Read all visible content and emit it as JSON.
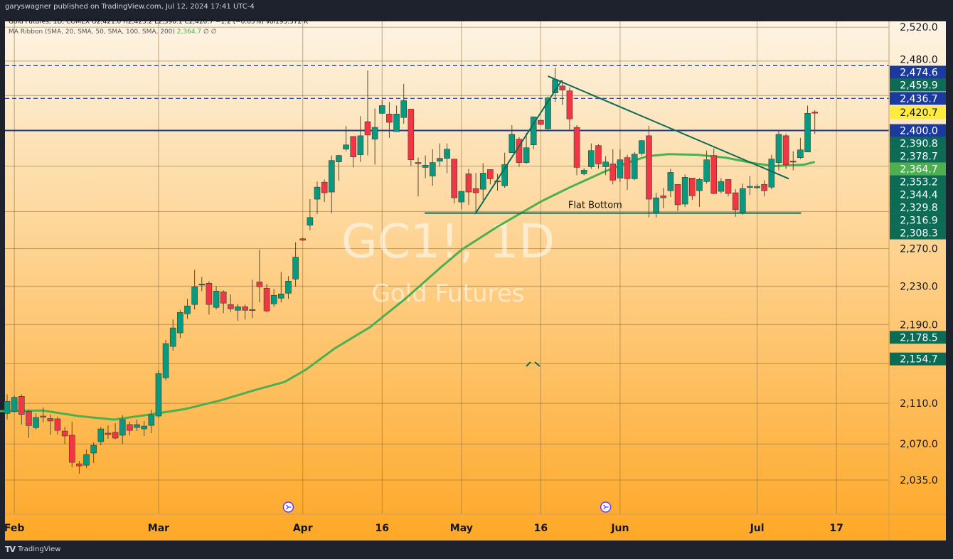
{
  "publisher_line": "garyswagner published on TradingView.com, Jul 12, 2024 17:41 UTC-4",
  "footer": {
    "brand": "TradingView"
  },
  "legend": {
    "symbol_line": "Gold Futures, 1D, COMEX  O2,421.0  H2,423.2  L2,396.1  C2,420.7  −1.2 (−0.05%)  Vol195.572 K",
    "ma_label": "MA Ribbon (SMA, 20, SMA, 50, SMA, 100, SMA, 200)",
    "ma_value": "2,364.7",
    "ma_extra": "∅  ∅"
  },
  "watermark": {
    "symbol": "GC1!, 1D",
    "name": "Gold Futures"
  },
  "colors": {
    "up": "#089981",
    "down": "#f23645",
    "ma": "#4caf50",
    "level": "#1a3a9c",
    "trend": "#0b6b55",
    "bg_top": "#fdf4e4",
    "bg_bottom": "#fea826"
  },
  "chart_data": {
    "type": "candlestick",
    "scale": "log",
    "ylim": [
      2020,
      2540
    ],
    "y_ticks": [
      "2,520.0",
      "2,270.0",
      "2,230.0",
      "2,190.0",
      "2,110.0",
      "2,070.0",
      "2,035.0"
    ],
    "y_tick_values": [
      2520,
      2270,
      2230,
      2190,
      2110,
      2070,
      2035
    ],
    "grid_values": [
      2520,
      2480,
      2440,
      2400,
      2360,
      2310,
      2270,
      2230,
      2190,
      2150,
      2110,
      2070,
      2035
    ],
    "x_ticks": [
      {
        "label": "Feb",
        "index": 1
      },
      {
        "label": "Mar",
        "index": 21
      },
      {
        "label": "Apr",
        "index": 41
      },
      {
        "label": "16",
        "index": 52
      },
      {
        "label": "May",
        "index": 63
      },
      {
        "label": "16",
        "index": 74
      },
      {
        "label": "Jun",
        "index": 85
      },
      {
        "label": "Jul",
        "index": 104
      },
      {
        "label": "17",
        "index": 115
      }
    ],
    "ohlc": [
      [
        2100,
        2119,
        2094,
        2112
      ],
      [
        2102,
        2118,
        2101,
        2116
      ],
      [
        2117,
        2119,
        2089,
        2099
      ],
      [
        2102,
        2104,
        2076,
        2088
      ],
      [
        2086,
        2100,
        2084,
        2096
      ],
      [
        2097.4,
        2106,
        2091,
        2096.7
      ],
      [
        2095,
        2099,
        2079,
        2092.5
      ],
      [
        2094.6,
        2096.7,
        2079,
        2083.3
      ],
      [
        2082.6,
        2086.8,
        2070,
        2077.8
      ],
      [
        2078.5,
        2091.8,
        2047.3,
        2052.1
      ],
      [
        2050.7,
        2053.5,
        2041.1,
        2048.6
      ],
      [
        2049.3,
        2064.5,
        2046.6,
        2059.7
      ],
      [
        2061.1,
        2071.5,
        2051.4,
        2068.7
      ],
      [
        2072.2,
        2086.8,
        2068.7,
        2084.7
      ],
      [
        2080.6,
        2088.2,
        2075,
        2079.2
      ],
      [
        2081.3,
        2090.4,
        2074.3,
        2075.7
      ],
      [
        2078.5,
        2098.1,
        2070.1,
        2093.9
      ],
      [
        2089,
        2091.8,
        2078.5,
        2083.3
      ],
      [
        2086.1,
        2093.9,
        2082.6,
        2089
      ],
      [
        2084.7,
        2092.5,
        2077.8,
        2087.5
      ],
      [
        2088.2,
        2103.7,
        2080.6,
        2098.8
      ],
      [
        2097.4,
        2143.7,
        2095.3,
        2139.9
      ],
      [
        2135.7,
        2174.1,
        2132.9,
        2170.4
      ],
      [
        2167.5,
        2195.2,
        2163.1,
        2186.5
      ],
      [
        2181.4,
        2204.8,
        2176.2,
        2202.5
      ],
      [
        2201.1,
        2216.7,
        2195.9,
        2209.3
      ],
      [
        2210.8,
        2247.3,
        2205.6,
        2229.4
      ],
      [
        2231.6,
        2239.7,
        2224.9,
        2232.3
      ],
      [
        2233.1,
        2235.3,
        2200.4,
        2210.8
      ],
      [
        2207.8,
        2230.1,
        2205.6,
        2224.9
      ],
      [
        2224.1,
        2225.6,
        2201.8,
        2212.2
      ],
      [
        2210.8,
        2221.2,
        2203.3,
        2206.3
      ],
      [
        2204.8,
        2211.5,
        2193.8,
        2208.5
      ],
      [
        2208.5,
        2210.8,
        2195.2,
        2204.8
      ],
      [
        2205.6,
        2236.8,
        2196.7,
        2205.4
      ],
      [
        2234.5,
        2269.1,
        2213,
        2229.4
      ],
      [
        2227.8,
        2232.3,
        2202.6,
        2204.1
      ],
      [
        2211.5,
        2227.1,
        2208.5,
        2220.4
      ],
      [
        2217.4,
        2245,
        2213,
        2221.9
      ],
      [
        2222.6,
        2240.5,
        2216.7,
        2235.3
      ],
      [
        2237.5,
        2276.7,
        2229.4,
        2260.8
      ],
      [
        2280.5,
        2281.5,
        2278,
        2279
      ],
      [
        2295.1,
        2323.5,
        2289.7,
        2303.5
      ],
      [
        2323.5,
        2342.9,
        2307.3,
        2336.7
      ],
      [
        2342.2,
        2345.2,
        2320.4,
        2330.5
      ],
      [
        2331.3,
        2371.9,
        2308.1,
        2366.3
      ],
      [
        2364.7,
        2372.7,
        2343.7,
        2371.9
      ],
      [
        2379,
        2405.3,
        2376.6,
        2383.8
      ],
      [
        2393.3,
        2393.3,
        2358.6,
        2370.3
      ],
      [
        2372.7,
        2416.4,
        2364.7,
        2394.1
      ],
      [
        2410.1,
        2469,
        2371.9,
        2394.9
      ],
      [
        2390.2,
        2425.2,
        2361.7,
        2403.6
      ],
      [
        2419.6,
        2435,
        2418.8,
        2428.4
      ],
      [
        2418.8,
        2432.5,
        2391.7,
        2409.3
      ],
      [
        2398.8,
        2428.4,
        2398.8,
        2418.8
      ],
      [
        2414.8,
        2453.5,
        2407.7,
        2434.1
      ],
      [
        2424.4,
        2424.4,
        2360.1,
        2367.1
      ],
      [
        2364,
        2369.5,
        2326.6,
        2363.8
      ],
      [
        2358.6,
        2371.9,
        2346.8,
        2361
      ],
      [
        2349,
        2379,
        2338.3,
        2364
      ],
      [
        2365.5,
        2385.4,
        2359.3,
        2368.7
      ],
      [
        2368.7,
        2385.4,
        2352.2,
        2379
      ],
      [
        2367.9,
        2367.9,
        2318.8,
        2325
      ],
      [
        2320.4,
        2332.1,
        2312.7,
        2332.1
      ],
      [
        2351.5,
        2357,
        2317.3,
        2331.3
      ],
      [
        2335.2,
        2352.2,
        2307.3,
        2330.5
      ],
      [
        2334.4,
        2363.2,
        2322.7,
        2352.2
      ],
      [
        2356.2,
        2356.2,
        2339.8,
        2346
      ],
      [
        2343.7,
        2351.5,
        2332.8,
        2343.5
      ],
      [
        2338.3,
        2375,
        2336,
        2361.7
      ],
      [
        2375,
        2406.1,
        2375,
        2395.7
      ],
      [
        2390.2,
        2392.5,
        2359.3,
        2364
      ],
      [
        2364,
        2397.3,
        2362.5,
        2380.6
      ],
      [
        2383.8,
        2415.6,
        2379,
        2415.6
      ],
      [
        2411.7,
        2412.5,
        2406.1,
        2406.9
      ],
      [
        2402,
        2438.9,
        2398.8,
        2437.3
      ],
      [
        2443,
        2472.1,
        2432.5,
        2458.4
      ],
      [
        2451,
        2457.5,
        2429.3,
        2446.2
      ],
      [
        2445.4,
        2449.4,
        2399.6,
        2413.2
      ],
      [
        2403.6,
        2406.1,
        2349.9,
        2358.6
      ],
      [
        2351.5,
        2357.8,
        2349.9,
        2355.4
      ],
      [
        2359.3,
        2385.4,
        2357,
        2377.4
      ],
      [
        2383,
        2384.6,
        2357,
        2362.5
      ],
      [
        2359.3,
        2371.1,
        2349.9,
        2364.7
      ],
      [
        2362.5,
        2379,
        2339.8,
        2344.4
      ],
      [
        2346.8,
        2379,
        2342.2,
        2367.1
      ],
      [
        2369.5,
        2372.7,
        2333.6,
        2346
      ],
      [
        2346,
        2375.8,
        2344.4,
        2373.4
      ],
      [
        2374.2,
        2389.4,
        2371.9,
        2388.6
      ],
      [
        2394.1,
        2405.3,
        2303.5,
        2323.5
      ],
      [
        2308.8,
        2330.5,
        2303.5,
        2325
      ],
      [
        2327.3,
        2335.9,
        2313.5,
        2325
      ],
      [
        2332.8,
        2357,
        2325.8,
        2353
      ],
      [
        2339.8,
        2339.8,
        2310.5,
        2317.3
      ],
      [
        2318.1,
        2350.7,
        2315,
        2347.6
      ],
      [
        2346.8,
        2346.8,
        2322.7,
        2327.3
      ],
      [
        2332.8,
        2346.8,
        2315,
        2345.2
      ],
      [
        2342.9,
        2377.4,
        2340.6,
        2367.1
      ],
      [
        2371.9,
        2379.8,
        2328.9,
        2329.7
      ],
      [
        2332.1,
        2346.8,
        2329.7,
        2342.9
      ],
      [
        2345.2,
        2345.2,
        2326.6,
        2329.7
      ],
      [
        2330.5,
        2334.4,
        2304.3,
        2311.9
      ],
      [
        2308.8,
        2340.6,
        2306.5,
        2335.2
      ],
      [
        2337.5,
        2349.1,
        2328.1,
        2337.6
      ],
      [
        2336,
        2340,
        2334.4,
        2337.5
      ],
      [
        2339.8,
        2344.4,
        2326.6,
        2332.8
      ],
      [
        2336.7,
        2372.7,
        2334.4,
        2367.9
      ],
      [
        2364,
        2399.6,
        2355.4,
        2395.7
      ],
      [
        2394.1,
        2396.5,
        2357,
        2361.7
      ],
      [
        2365.7,
        2376.6,
        2355.4,
        2365.5
      ],
      [
        2369.5,
        2391.7,
        2367.9,
        2378.2
      ],
      [
        2375.8,
        2428.4,
        2375.8,
        2419.6
      ],
      [
        2421.0,
        2423.2,
        2396.1,
        2420.7
      ]
    ],
    "ma": {
      "name": "MA Ribbon",
      "points": [
        [
          -1,
          2102.3
        ],
        [
          4.9,
          2103
        ],
        [
          9.9,
          2097.4
        ],
        [
          14.8,
          2093.9
        ],
        [
          19.7,
          2098.8
        ],
        [
          24.7,
          2104.4
        ],
        [
          29.6,
          2113
        ],
        [
          34.5,
          2123.6
        ],
        [
          38.5,
          2131.5
        ],
        [
          41.4,
          2143.7
        ],
        [
          45.4,
          2165.3
        ],
        [
          50.3,
          2187.2
        ],
        [
          55.2,
          2216.7
        ],
        [
          60.2,
          2250.3
        ],
        [
          63.1,
          2269.1
        ],
        [
          68,
          2293.5
        ],
        [
          73.9,
          2320.4
        ],
        [
          77.9,
          2336
        ],
        [
          82.8,
          2353.8
        ],
        [
          85.8,
          2363.2
        ],
        [
          88.8,
          2371.1
        ],
        [
          91.7,
          2373.4
        ],
        [
          95.7,
          2372.7
        ],
        [
          99.6,
          2369.5
        ],
        [
          103.6,
          2363.2
        ],
        [
          106.5,
          2360.1
        ],
        [
          110.5,
          2361.7
        ],
        [
          112,
          2364.7
        ]
      ]
    },
    "levels": [
      {
        "price": 2400.0,
        "style": "solid"
      },
      {
        "price": 2474.6,
        "style": "dashed"
      },
      {
        "price": 2436.7,
        "style": "dashed"
      }
    ],
    "trendlines": [
      {
        "from": [
          75,
          2462.4
        ],
        "to": [
          108.4,
          2346
        ]
      },
      {
        "from": [
          64.9,
          2307.3
        ],
        "to": [
          76.9,
          2457.5
        ]
      },
      {
        "from": [
          57.9,
          2308.3
        ],
        "to": [
          110.1,
          2308.3
        ]
      }
    ],
    "annotations": [
      {
        "text": "Flat Bottom",
        "index": 77.5,
        "price": 2314
      }
    ],
    "price_labels": [
      {
        "text": "2,480.0",
        "price": 2482,
        "kind": "tick"
      },
      {
        "text": "2,459.9",
        "price": 2459.9,
        "kind": "green"
      },
      {
        "text": "2,474.6",
        "price": 2474.6,
        "kind": "blue"
      },
      {
        "text": "2,436.7",
        "price": 2436.7,
        "kind": "blue"
      },
      {
        "text": "2,420.7",
        "price": 2420.7,
        "kind": "last"
      },
      {
        "text": "2,390.8",
        "price": 2390.8,
        "kind": "green"
      },
      {
        "text": "2,378.7",
        "price": 2378.7,
        "kind": "green"
      },
      {
        "text": "2,400.0",
        "price": 2400.0,
        "kind": "blue"
      },
      {
        "text": "2,364.7",
        "price": 2364.7,
        "kind": "ma"
      },
      {
        "text": "2,353.2",
        "price": 2353.2,
        "kind": "green"
      },
      {
        "text": "2,344.4",
        "price": 2344.4,
        "kind": "green"
      },
      {
        "text": "2,329.8",
        "price": 2329.8,
        "kind": "green"
      },
      {
        "text": "2,316.9",
        "price": 2316.9,
        "kind": "green"
      },
      {
        "text": "2,308.3",
        "price": 2308.3,
        "kind": "green"
      },
      {
        "text": "2,178.5",
        "price": 2178.5,
        "kind": "green"
      },
      {
        "text": "2,154.7",
        "price": 2154.7,
        "kind": "green"
      }
    ],
    "event_markers": [
      {
        "index": 39
      },
      {
        "index": 83
      }
    ]
  }
}
